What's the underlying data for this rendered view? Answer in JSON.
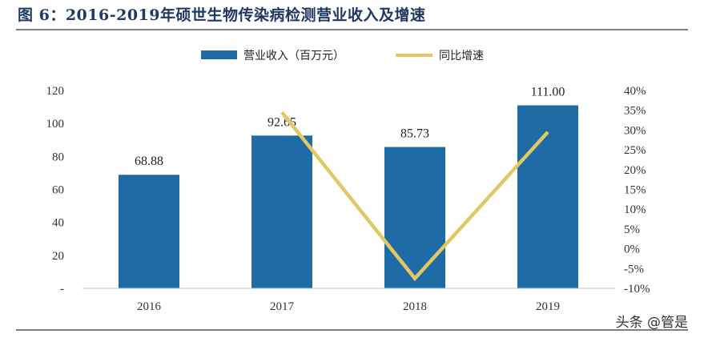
{
  "title": "图 6：2016-2019年硕世生物传染病检测营业收入及增速",
  "watermark": "头条 @管是",
  "colors": {
    "bar": "#1f6ba5",
    "line": "#e2c765",
    "title": "#1f3864"
  },
  "chart_data": {
    "type": "bar",
    "categories": [
      "2016",
      "2017",
      "2018",
      "2019"
    ],
    "series": [
      {
        "name": "营业收入（百万元）",
        "type": "bar",
        "axis": "left",
        "values": [
          68.88,
          92.65,
          85.73,
          111.0
        ],
        "labels": [
          "68.88",
          "92.65",
          "85.73",
          "111.00"
        ]
      },
      {
        "name": "同比增速",
        "type": "line",
        "axis": "right",
        "values": [
          null,
          34.5,
          -7.5,
          29.5
        ]
      }
    ],
    "ylim": [
      0,
      120
    ],
    "y_ticks": [
      "-",
      "20",
      "40",
      "60",
      "80",
      "100",
      "120"
    ],
    "y2lim": [
      -10,
      40
    ],
    "y2_ticks": [
      "-10%",
      "-5%",
      "0%",
      "5%",
      "10%",
      "15%",
      "20%",
      "25%",
      "30%",
      "35%",
      "40%"
    ],
    "legend_position": "top-center",
    "grid": false
  }
}
